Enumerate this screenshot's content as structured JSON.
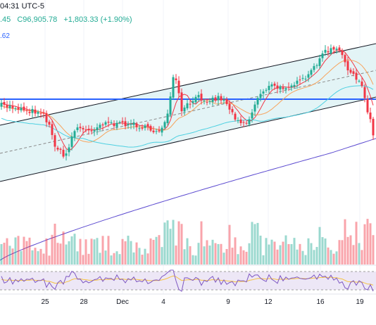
{
  "header": {
    "time_label": "04:31 UTC-5",
    "ohlc_partial": ".45",
    "close_value": "C96,905.78",
    "change_value": "+1,803.33 (+1.90%)",
    "ma_value_partial": ".62"
  },
  "colors": {
    "up_candle": "#22ab94",
    "down_candle": "#f23645",
    "channel_fill": "#e0f3f5",
    "channel_line": "#131722",
    "horizontal_line": "#2962ff",
    "ma_fast": "#f23645",
    "ma_medium": "#f7a35c",
    "ma_cyan": "#4dd0e1",
    "ma_slow": "#5b4ad0",
    "rsi_line": "#7e57c2",
    "rsi_signal": "#f5c242",
    "rsi_band": "#ede7f6"
  },
  "x_axis": {
    "labels": [
      "25",
      "28",
      "Dec",
      "4",
      "9",
      "12",
      "16",
      "19"
    ]
  }
}
